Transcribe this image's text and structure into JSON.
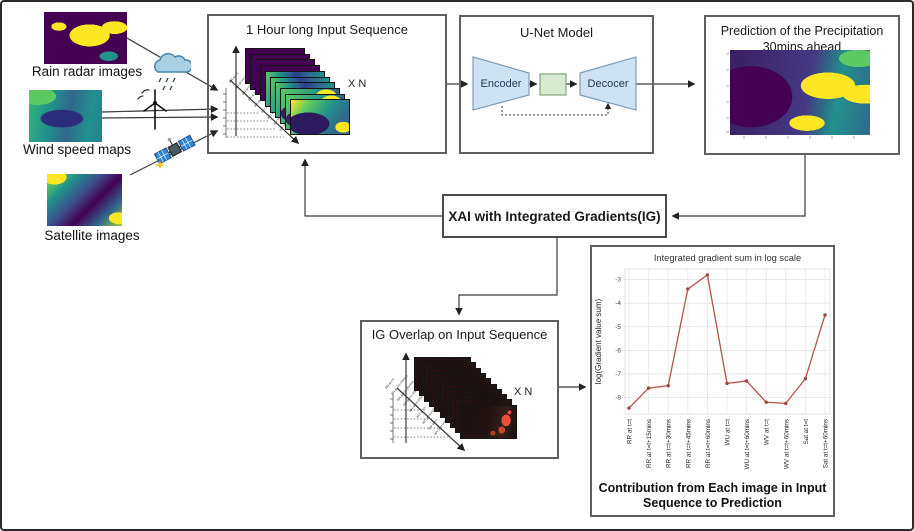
{
  "diagram": {
    "inputs": [
      {
        "label": "Rain radar images",
        "icon": "rain-cloud"
      },
      {
        "label": "Wind speed maps",
        "icon": "wind-turbine"
      },
      {
        "label": "Satellite images",
        "icon": "satellite"
      }
    ],
    "sequence_box": {
      "title": "1 Hour long Input Sequence",
      "multiplier": "X N",
      "stack_count": 10
    },
    "unet_box": {
      "title": "U-Net Model",
      "encoder_label": "Encoder",
      "decoder_label": "Decocer"
    },
    "prediction_box": {
      "title": "Prediction of the Precipitation 30mins ahead"
    },
    "xai_box": {
      "title": "XAI with Integrated Gradients(IG)"
    },
    "ig_box": {
      "title": "IG Overlap on Input Sequence",
      "multiplier": "X N",
      "stack_count": 10
    },
    "chart_caption": "Contribution from Each image in Input Sequence to Prediction"
  },
  "chart_data": {
    "type": "line",
    "title": "Integrated gradient sum in log scale",
    "ylabel": "log(Gradient value sum)",
    "xlabel": "",
    "categories": [
      "RR at t=t",
      "RR at t=t+15mins",
      "RR at t=t+30mins",
      "RR at t=t+45mins",
      "RR at t=t+60mins",
      "WU at t=t",
      "WU at t=t+60mins",
      "WV at t=t",
      "WV at t=t+60mins",
      "Sat at t=t",
      "Sat at t=t+60mins"
    ],
    "values": [
      -8.45,
      -7.6,
      -7.5,
      -3.4,
      -2.8,
      -7.4,
      -7.3,
      -8.2,
      -8.25,
      -7.2,
      -4.5
    ],
    "ylim": [
      -8.7,
      -2.55
    ],
    "yticks": [
      -3,
      -4,
      -5,
      -6,
      -7,
      -8
    ],
    "grid": true,
    "legend_position": "none",
    "line_color": "#b5524a",
    "marker_color": "#9e463c"
  },
  "colors": {
    "box_border": "#5f5f5f",
    "encoder_fill": "#cfe2f3",
    "bottleneck_fill": "#d9ead3",
    "viridis": [
      "#440154",
      "#3b528b",
      "#21918c",
      "#35b779",
      "#fde725"
    ]
  }
}
